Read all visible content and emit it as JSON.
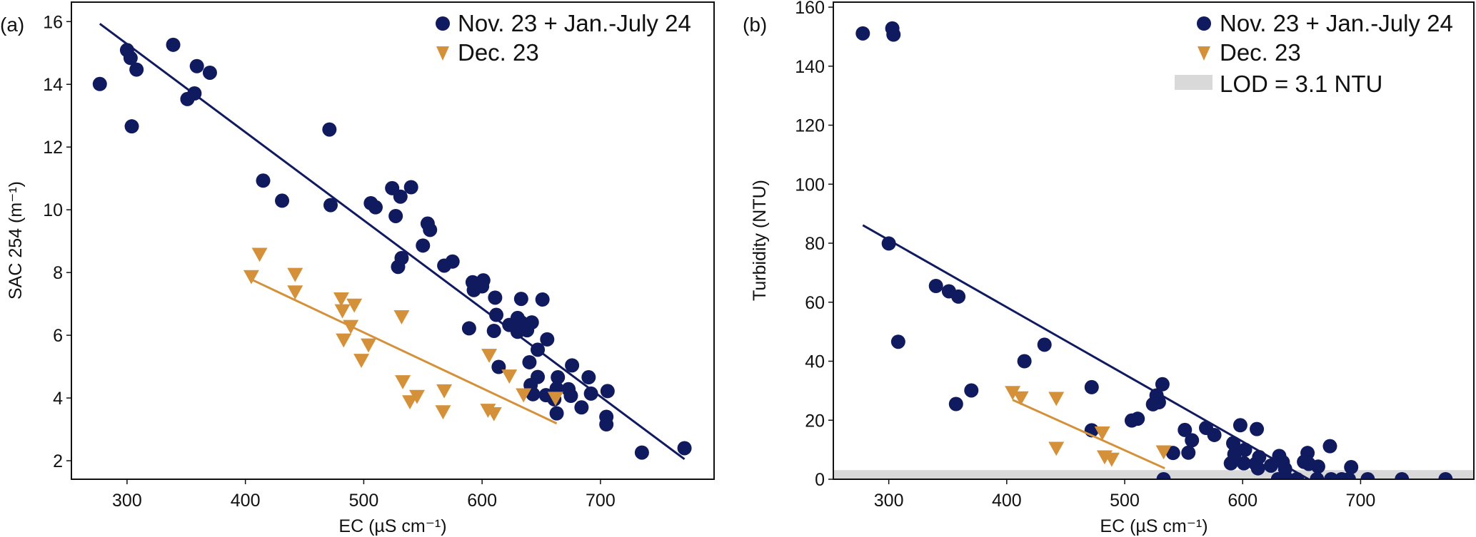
{
  "colors": {
    "series1": "#101a5e",
    "series2": "#d4913a",
    "lod": "#d9d9d9",
    "axis": "#111111"
  },
  "chart_data": [
    {
      "type": "scatter",
      "panel_label": "(a)",
      "xlabel": "EC (µS cm⁻¹)",
      "ylabel": "SAC 254 (m⁻¹)",
      "xlim": [
        253,
        796
      ],
      "ylim": [
        1.41,
        16.62
      ],
      "xticks": [
        300,
        400,
        500,
        600,
        700
      ],
      "yticks": [
        2,
        4,
        6,
        8,
        10,
        12,
        14,
        16
      ],
      "legend_position": "top-right",
      "series": [
        {
          "name": "Nov. 23 + Jan.-July 24",
          "marker": "circle",
          "points": [
            [
              277,
              14.01
            ],
            [
              300,
              15.09
            ],
            [
              303,
              14.84
            ],
            [
              308,
              14.47
            ],
            [
              304,
              12.66
            ],
            [
              339,
              15.26
            ],
            [
              359,
              14.58
            ],
            [
              370,
              14.37
            ],
            [
              351,
              13.53
            ],
            [
              357,
              13.71
            ],
            [
              471,
              12.56
            ],
            [
              415,
              10.93
            ],
            [
              431,
              10.29
            ],
            [
              472,
              10.15
            ],
            [
              506,
              10.21
            ],
            [
              510,
              10.08
            ],
            [
              524,
              10.69
            ],
            [
              540,
              10.72
            ],
            [
              531,
              10.42
            ],
            [
              527,
              9.8
            ],
            [
              554,
              9.56
            ],
            [
              556,
              9.36
            ],
            [
              550,
              8.86
            ],
            [
              532,
              8.46
            ],
            [
              529,
              8.18
            ],
            [
              568,
              8.22
            ],
            [
              575,
              8.35
            ],
            [
              592,
              7.69
            ],
            [
              593,
              7.44
            ],
            [
              601,
              7.75
            ],
            [
              600,
              7.56
            ],
            [
              611,
              7.2
            ],
            [
              633,
              7.16
            ],
            [
              651,
              7.14
            ],
            [
              589,
              6.22
            ],
            [
              612,
              6.65
            ],
            [
              610,
              6.14
            ],
            [
              623,
              6.33
            ],
            [
              630,
              6.55
            ],
            [
              633,
              6.41
            ],
            [
              642,
              6.41
            ],
            [
              638,
              6.16
            ],
            [
              630,
              6.11
            ],
            [
              655,
              5.87
            ],
            [
              647,
              5.54
            ],
            [
              640,
              5.14
            ],
            [
              676,
              5.04
            ],
            [
              614,
              4.99
            ],
            [
              647,
              4.67
            ],
            [
              641,
              4.41
            ],
            [
              643,
              4.12
            ],
            [
              654,
              4.09
            ],
            [
              664,
              4.66
            ],
            [
              663,
              4.3
            ],
            [
              661,
              3.96
            ],
            [
              663,
              3.51
            ],
            [
              673,
              4.28
            ],
            [
              675,
              4.07
            ],
            [
              684,
              3.7
            ],
            [
              690,
              4.66
            ],
            [
              692,
              4.14
            ],
            [
              706,
              4.22
            ],
            [
              705,
              3.4
            ],
            [
              705,
              3.16
            ],
            [
              735,
              2.26
            ],
            [
              771,
              2.4
            ]
          ],
          "fit": [
            [
              277,
              15.93
            ],
            [
              771,
              2.05
            ]
          ]
        },
        {
          "name": "Dec. 23",
          "marker": "triangle-down",
          "points": [
            [
              405,
              7.89
            ],
            [
              412,
              8.6
            ],
            [
              442,
              7.96
            ],
            [
              442,
              7.4
            ],
            [
              481,
              7.18
            ],
            [
              482,
              6.8
            ],
            [
              492,
              6.98
            ],
            [
              489,
              6.3
            ],
            [
              483,
              5.87
            ],
            [
              504,
              5.71
            ],
            [
              498,
              5.22
            ],
            [
              532,
              6.61
            ],
            [
              606,
              5.38
            ],
            [
              623,
              4.72
            ],
            [
              533,
              4.54
            ],
            [
              545,
              4.07
            ],
            [
              539,
              3.9
            ],
            [
              568,
              4.25
            ],
            [
              567,
              3.58
            ],
            [
              605,
              3.63
            ],
            [
              610,
              3.52
            ],
            [
              635,
              4.12
            ],
            [
              662,
              4.01
            ]
          ],
          "fit": [
            [
              405,
              7.78
            ],
            [
              663,
              3.19
            ]
          ]
        }
      ]
    },
    {
      "type": "scatter",
      "panel_label": "(b)",
      "xlabel": "EC (µS cm⁻¹)",
      "ylabel": "Turbidity (NTU)",
      "xlim": [
        253,
        796
      ],
      "ylim": [
        0,
        161.7
      ],
      "xticks": [
        300,
        400,
        500,
        600,
        700
      ],
      "yticks": [
        0,
        20,
        40,
        60,
        80,
        100,
        120,
        140,
        160
      ],
      "legend_position": "top-right",
      "lod": {
        "label": "LOD = 3.1 NTU",
        "value": 3.1
      },
      "series": [
        {
          "name": "Nov. 23 + Jan.-July 24",
          "marker": "circle",
          "points": [
            [
              278,
              151.1
            ],
            [
              303,
              152.8
            ],
            [
              304,
              150.7
            ],
            [
              300,
              79.9
            ],
            [
              340,
              65.5
            ],
            [
              351,
              63.7
            ],
            [
              359,
              61.9
            ],
            [
              308,
              46.6
            ],
            [
              357,
              25.5
            ],
            [
              370,
              30.1
            ],
            [
              415,
              40.0
            ],
            [
              432,
              45.6
            ],
            [
              472,
              31.2
            ],
            [
              472,
              16.6
            ],
            [
              506,
              19.9
            ],
            [
              511,
              20.5
            ],
            [
              524,
              25.4
            ],
            [
              527,
              28.4
            ],
            [
              529,
              26.1
            ],
            [
              532,
              32.2
            ],
            [
              541,
              8.9
            ],
            [
              551,
              16.7
            ],
            [
              557,
              13.2
            ],
            [
              554,
              9.0
            ],
            [
              569,
              17.4
            ],
            [
              576,
              15.0
            ],
            [
              590,
              5.4
            ],
            [
              592,
              12.2
            ],
            [
              593,
              8.5
            ],
            [
              598,
              18.3
            ],
            [
              601,
              5.4
            ],
            [
              602,
              10.0
            ],
            [
              612,
              17.0
            ],
            [
              613,
              3.7
            ],
            [
              614,
              7.5
            ],
            [
              611,
              5.2
            ],
            [
              624,
              4.6
            ],
            [
              631,
              7.9
            ],
            [
              634,
              5.8
            ],
            [
              636,
              3.5
            ],
            [
              652,
              5.9
            ],
            [
              655,
              8.9
            ],
            [
              656,
              5.2
            ],
            [
              664,
              4.3
            ],
            [
              674,
              11.2
            ],
            [
              692,
              4.1
            ],
            [
              533,
              0
            ],
            [
              630,
              0
            ],
            [
              638,
              0
            ],
            [
              646,
              0
            ],
            [
              663,
              0
            ],
            [
              675,
              0
            ],
            [
              684,
              0
            ],
            [
              690,
              0
            ],
            [
              706,
              0
            ],
            [
              735,
              0
            ],
            [
              772,
              0
            ]
          ],
          "fit": [
            [
              278,
              86.1
            ],
            [
              656,
              0
            ]
          ]
        },
        {
          "name": "Dec. 23",
          "marker": "triangle-down",
          "points": [
            [
              405,
              29.6
            ],
            [
              412,
              27.8
            ],
            [
              442,
              27.6
            ],
            [
              442,
              10.7
            ],
            [
              481,
              15.9
            ],
            [
              483,
              7.8
            ],
            [
              489,
              7.0
            ],
            [
              533,
              9.5
            ]
          ],
          "fit": [
            [
              405,
              26.9
            ],
            [
              534,
              3.7
            ]
          ]
        }
      ]
    }
  ]
}
